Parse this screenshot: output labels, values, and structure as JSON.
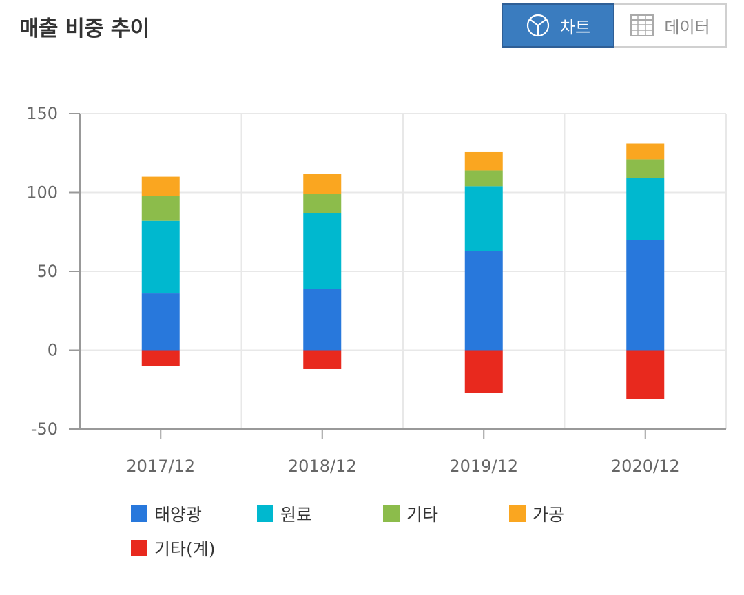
{
  "header": {
    "title": "매출 비중 추이"
  },
  "toggle": {
    "chart_label": "차트",
    "chart_icon": "pie-chart-icon",
    "data_label": "데이터",
    "data_icon": "table-grid-icon",
    "active_color": "#3a7cbf"
  },
  "chart_data": {
    "type": "bar",
    "stacked": true,
    "categories": [
      "2017/12",
      "2018/12",
      "2019/12",
      "2020/12"
    ],
    "ylim": [
      -50,
      150
    ],
    "yticks": [
      150,
      100,
      50,
      0,
      -50
    ],
    "grid": true,
    "legend_position": "bottom",
    "series": [
      {
        "name": "태양광",
        "color": "#2878dc",
        "values": [
          36,
          39,
          63,
          70
        ]
      },
      {
        "name": "원료",
        "color": "#00b8cf",
        "values": [
          46,
          48,
          41,
          39
        ]
      },
      {
        "name": "기타",
        "color": "#8cbc4b",
        "values": [
          16,
          12,
          10,
          12
        ]
      },
      {
        "name": "가공",
        "color": "#faa620",
        "values": [
          12,
          13,
          12,
          10
        ]
      },
      {
        "name": "기타(계)",
        "color": "#e8291e",
        "values": [
          -10,
          -12,
          -27,
          -31
        ]
      }
    ]
  }
}
